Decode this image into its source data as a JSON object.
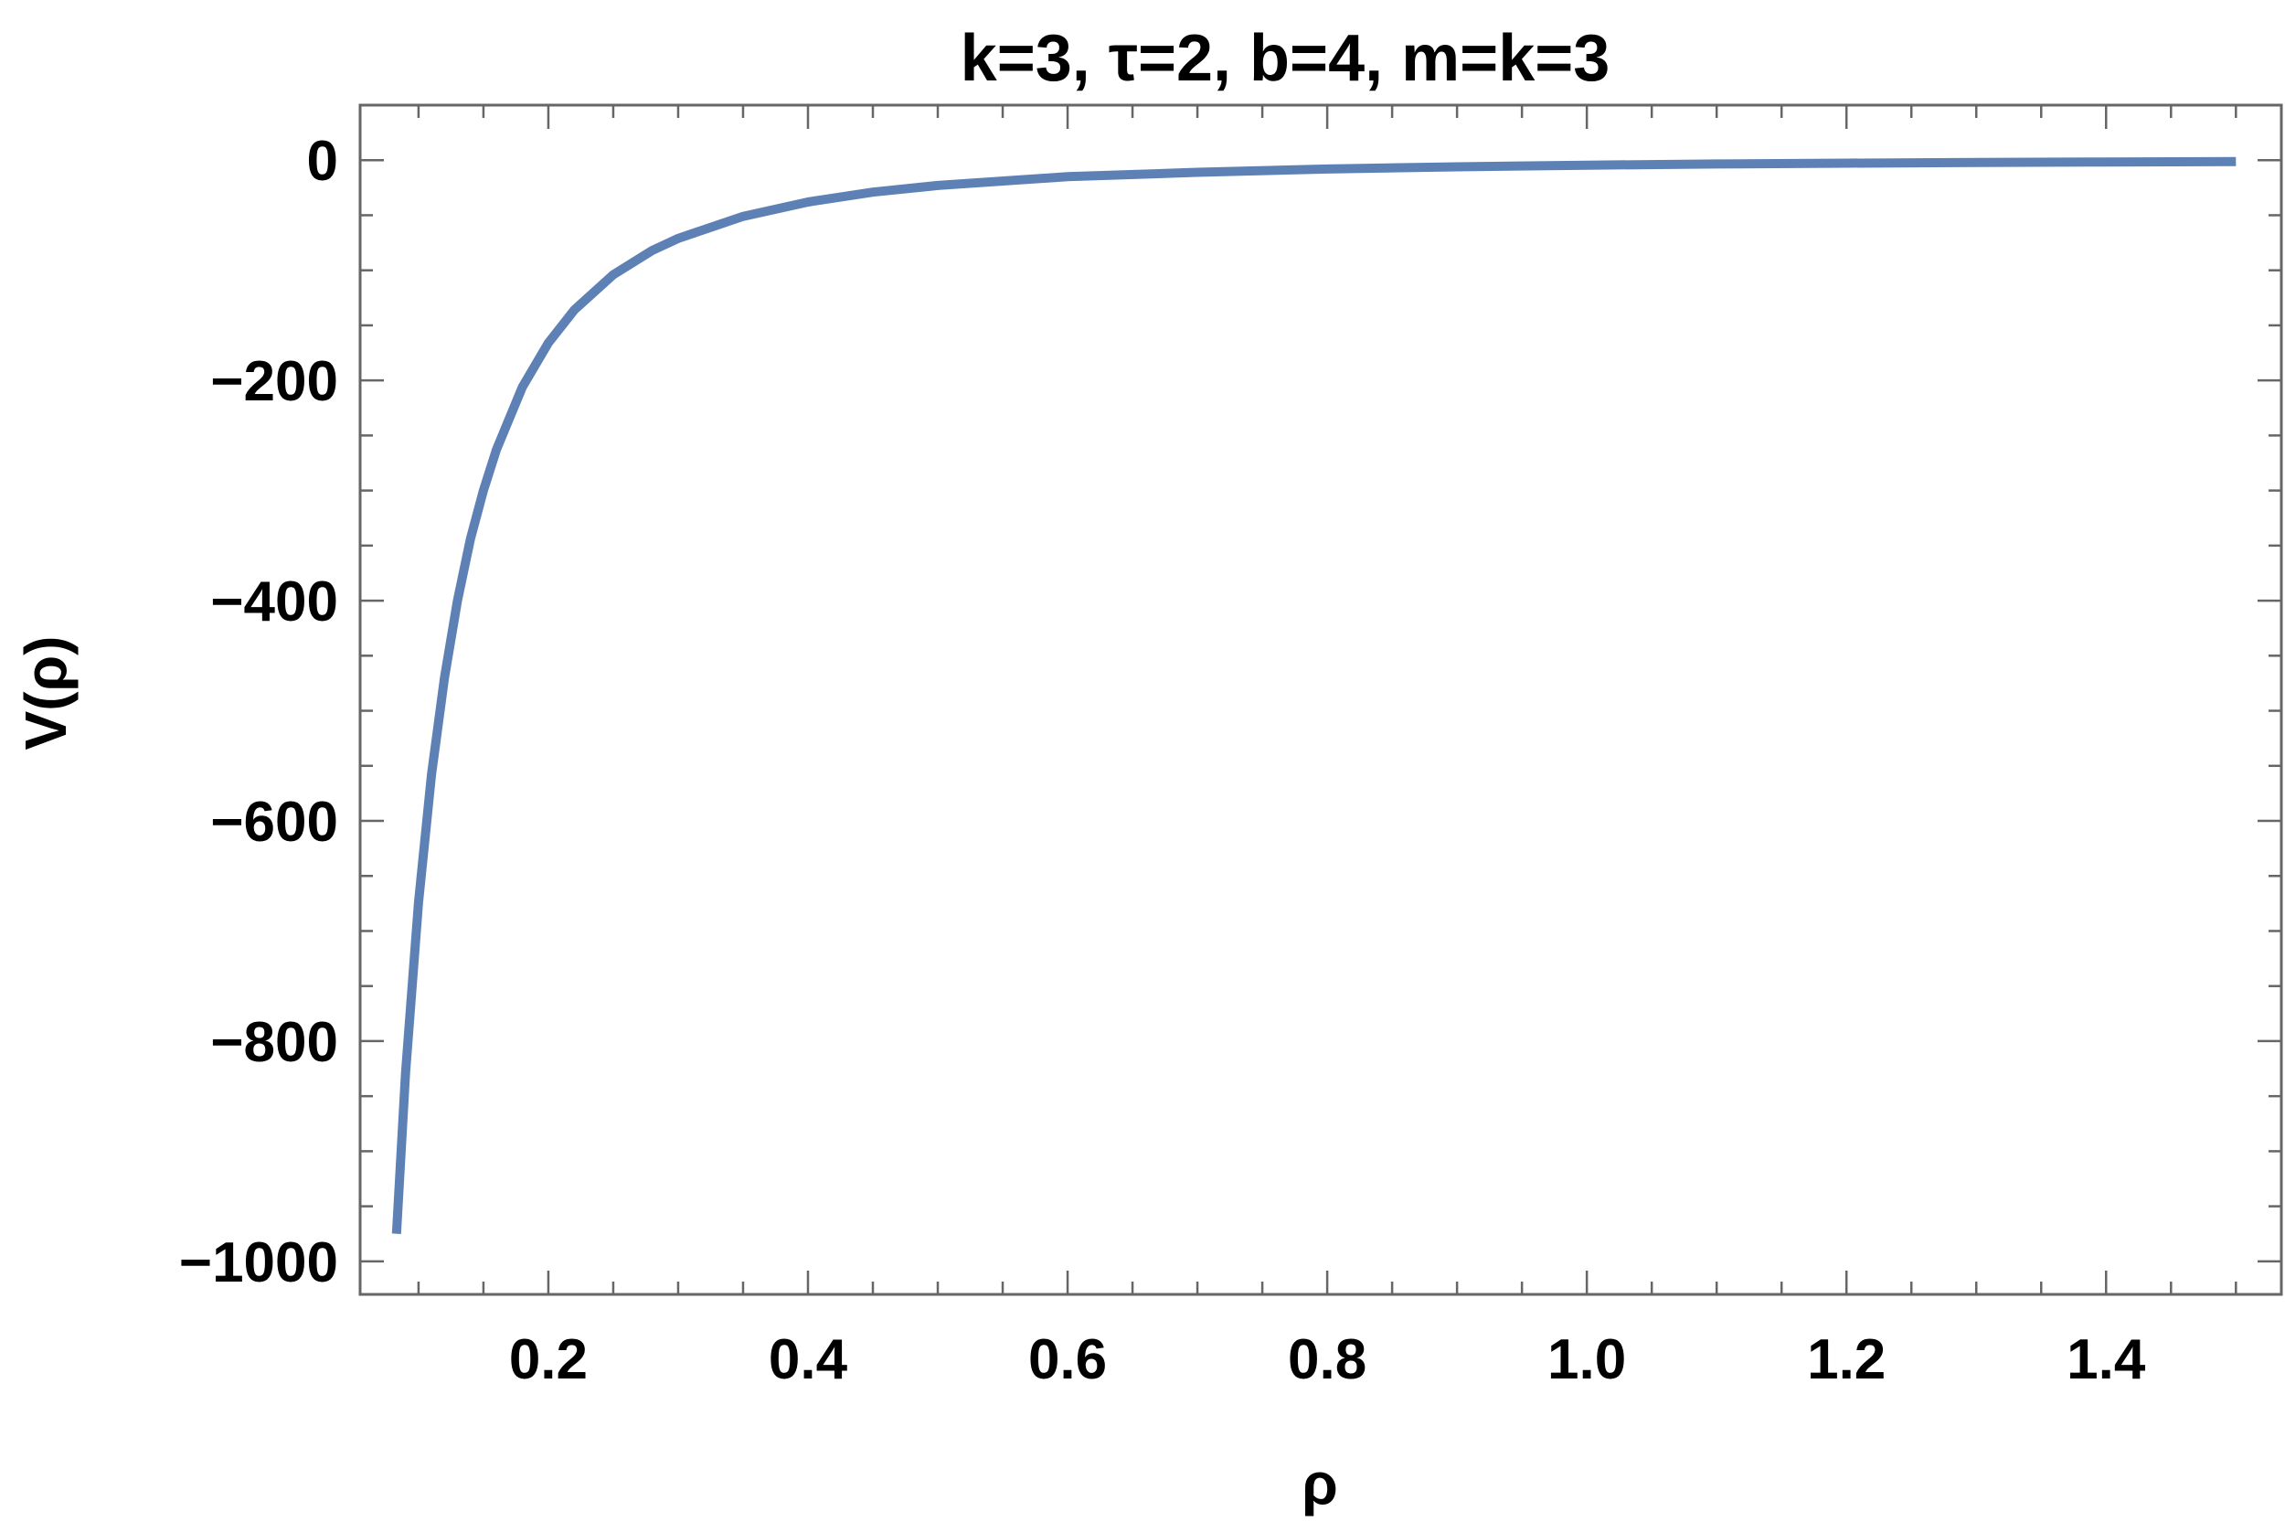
{
  "chart_data": {
    "type": "line",
    "title": "k=3, τ=2, b=4, m=k=3",
    "xlabel": "ρ",
    "ylabel": "V(ρ)",
    "xlim": [
      0.055,
      1.535
    ],
    "ylim": [
      -1030,
      50
    ],
    "x_ticks": [
      0.2,
      0.4,
      0.6,
      0.8,
      1.0,
      1.2,
      1.4
    ],
    "x_tick_labels": [
      "0.2",
      "0.4",
      "0.6",
      "0.8",
      "1.0",
      "1.2",
      "1.4"
    ],
    "y_ticks": [
      0,
      -200,
      -400,
      -600,
      -800,
      -1000
    ],
    "y_tick_labels": [
      "0",
      "−200",
      "−400",
      "−600",
      "−800",
      "−1000"
    ],
    "grid": false,
    "colors": {
      "series": "#5e81b5",
      "frame": "#666666"
    },
    "series": [
      {
        "x": [
          0.083,
          0.09,
          0.1,
          0.11,
          0.12,
          0.13,
          0.14,
          0.15,
          0.16,
          0.18,
          0.2,
          0.22,
          0.25,
          0.28,
          0.3,
          0.35,
          0.4,
          0.45,
          0.5,
          0.6,
          0.7,
          0.8,
          0.9,
          1.0,
          1.1,
          1.2,
          1.3,
          1.4,
          1.5
        ],
        "y": [
          -975,
          -829,
          -674,
          -558,
          -470,
          -400,
          -344,
          -300,
          -263,
          -206,
          -166,
          -136,
          -104,
          -82,
          -71,
          -51,
          -38,
          -29,
          -23,
          -15,
          -11,
          -8,
          -6,
          -4.5,
          -3.5,
          -2.7,
          -2.1,
          -1.6,
          -1.2
        ]
      }
    ]
  }
}
